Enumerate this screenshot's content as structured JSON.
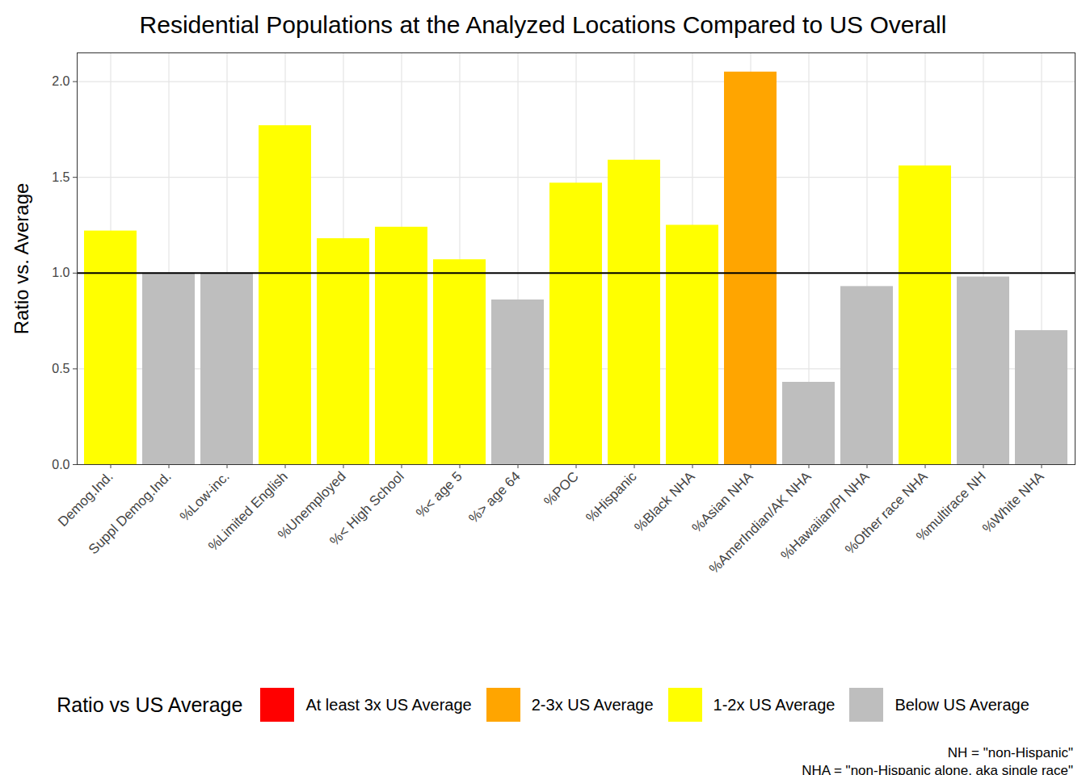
{
  "chart_data": {
    "type": "bar",
    "title": "Residential Populations at the Analyzed Locations Compared to US Overall",
    "y_label": "Ratio vs. Average",
    "categories": [
      "Demog.Ind.",
      "Suppl Demog.Ind.",
      "%Low-inc.",
      "%Limited English",
      "%Unemployed",
      "%< High School",
      "%< age 5",
      "%> age 64",
      "%POC",
      "%Hispanic",
      "%Black NHA",
      "%Asian NHA",
      "%AmerIndian/AK NHA",
      "%Hawaiian/PI NHA",
      "%Other race NHA",
      "%multirace NH",
      "%White NHA"
    ],
    "values": [
      1.22,
      1.0,
      1.0,
      1.77,
      1.18,
      1.24,
      1.07,
      0.86,
      1.47,
      1.59,
      1.25,
      2.05,
      0.43,
      0.93,
      1.56,
      0.98,
      0.7
    ],
    "colors": [
      "#ffff00",
      "#bebebe",
      "#bebebe",
      "#ffff00",
      "#ffff00",
      "#ffff00",
      "#ffff00",
      "#bebebe",
      "#ffff00",
      "#ffff00",
      "#ffff00",
      "#ffa500",
      "#bebebe",
      "#bebebe",
      "#ffff00",
      "#bebebe",
      "#bebebe"
    ],
    "ylim": [
      0,
      2.15
    ],
    "yticks": [
      {
        "value": 0,
        "label": "0.0"
      },
      {
        "value": 0.5,
        "label": "0.5"
      },
      {
        "value": 1,
        "label": "1.0"
      },
      {
        "value": 1.5,
        "label": "1.5"
      },
      {
        "value": 2,
        "label": "2.0"
      }
    ],
    "grid": true,
    "reference_line": 1,
    "legend_title": "Ratio vs US Average",
    "legend_items": [
      {
        "label": "At least 3x US Average",
        "color": "#ff0000"
      },
      {
        "label": "2-3x US Average",
        "color": "#ffa500"
      },
      {
        "label": "1-2x US Average",
        "color": "#ffff00"
      },
      {
        "label": "Below US Average",
        "color": "#bebebe"
      }
    ],
    "notes": [
      "NH = \"non-Hispanic\"",
      "NHA = \"non-Hispanic alone, aka single race\""
    ]
  }
}
